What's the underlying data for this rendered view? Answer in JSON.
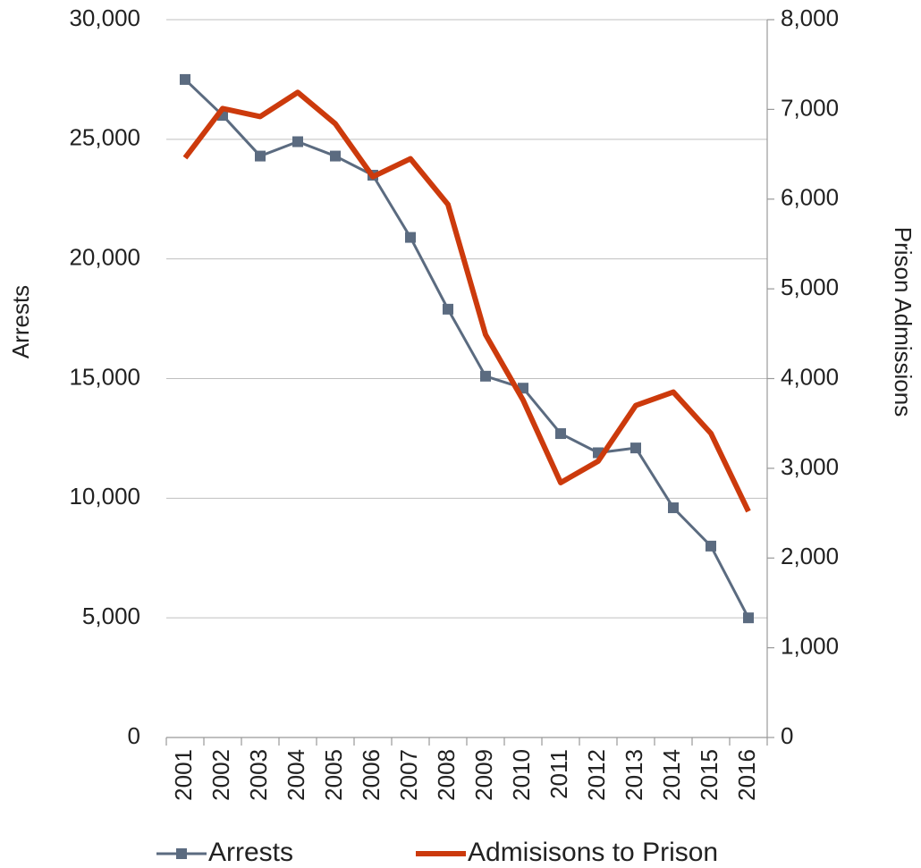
{
  "chart_data": {
    "type": "line",
    "y_label": "Arrests",
    "y2_label": "Prison Admissions",
    "categories": [
      "2001",
      "2002",
      "2003",
      "2004",
      "2005",
      "2006",
      "2007",
      "2008",
      "2009",
      "2010",
      "2011",
      "2012",
      "2013",
      "2014",
      "2015",
      "2016"
    ],
    "series": [
      {
        "name": "Arrests",
        "color": "#5b6b80",
        "marker": "square",
        "values": [
          27500,
          26000,
          24300,
          24900,
          24300,
          23500,
          20900,
          17900,
          15100,
          14600,
          12700,
          11900,
          12100,
          9600,
          8000,
          5000
        ]
      },
      {
        "name": "Admisisons to Prison",
        "color": "#cc3a0c",
        "axis": "y2",
        "values": [
          6460,
          7010,
          6920,
          7190,
          6840,
          6250,
          6450,
          5940,
          4490,
          3760,
          2840,
          3080,
          3700,
          3850,
          3390,
          2520
        ]
      }
    ],
    "ylim": [
      0,
      30000
    ],
    "yticks": [
      0,
      {
        "value": 5000,
        "label": "5,000"
      },
      {
        "value": 10000,
        "label": "10,000"
      },
      {
        "value": 15000,
        "label": "15,000"
      },
      {
        "value": 20000,
        "label": "20,000"
      },
      {
        "value": 25000,
        "label": "25,000"
      },
      {
        "value": 30000,
        "label": "30,000"
      }
    ],
    "y2lim": [
      0,
      8000
    ],
    "y2ticks": [
      0,
      {
        "value": 1000,
        "label": "1,000"
      },
      {
        "value": 2000,
        "label": "2,000"
      },
      {
        "value": 3000,
        "label": "3,000"
      },
      {
        "value": 4000,
        "label": "4,000"
      },
      {
        "value": 5000,
        "label": "5,000"
      },
      {
        "value": 6000,
        "label": "6,000"
      },
      {
        "value": 7000,
        "label": "7,000"
      },
      {
        "value": 8000,
        "label": "8,000"
      }
    ],
    "grid": true,
    "legend": "bottom"
  }
}
